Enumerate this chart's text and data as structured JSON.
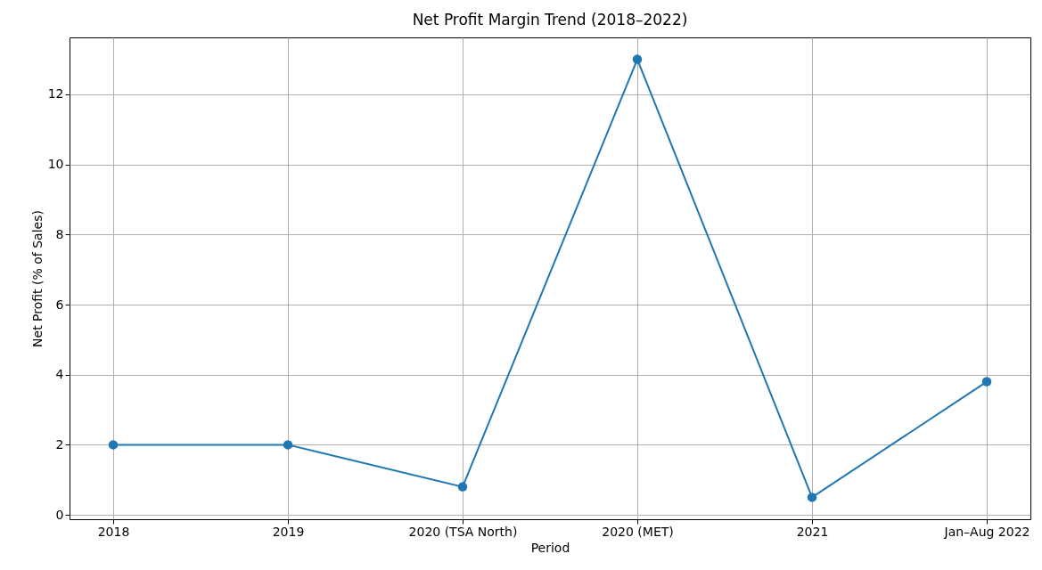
{
  "chart_data": {
    "type": "line",
    "title": "Net Profit Margin Trend (2018–2022)",
    "xlabel": "Period",
    "ylabel": "Net Profit (% of Sales)",
    "categories": [
      "2018",
      "2019",
      "2020 (TSA North)",
      "2020 (MET)",
      "2021",
      "Jan–Aug 2022"
    ],
    "series": [
      {
        "color": "#1f77b4",
        "values": [
          2,
          2,
          0.8,
          13,
          0.5,
          3.8
        ]
      }
    ],
    "ylim": [
      -0.125,
      13.625
    ],
    "yticks": [
      0,
      2,
      4,
      6,
      8,
      10,
      12
    ],
    "grid": true,
    "marker": "circle",
    "line_style": "solid"
  }
}
